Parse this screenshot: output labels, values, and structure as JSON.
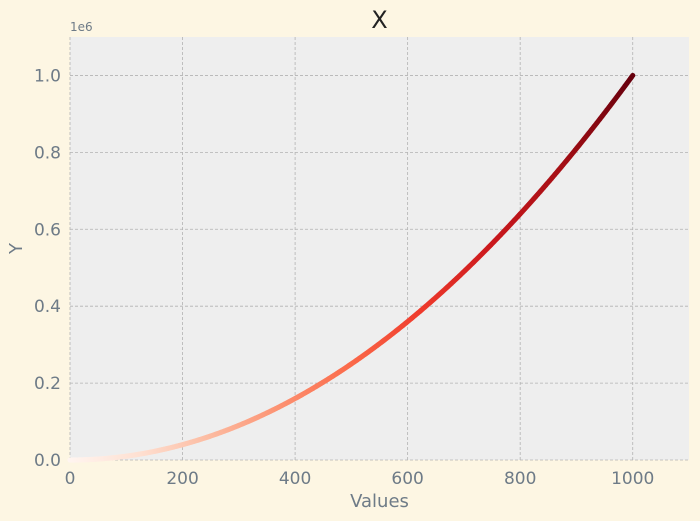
{
  "chart_data": {
    "type": "scatter",
    "title": "X",
    "xlabel": "Values",
    "ylabel": "Y",
    "y_offset_label": "1e6",
    "xlim": [
      0,
      1100
    ],
    "ylim": [
      0,
      1.1
    ],
    "y_scale_factor": 1000000,
    "xticks": [
      0,
      200,
      400,
      600,
      800,
      1000
    ],
    "xtick_labels": [
      "0",
      "200",
      "400",
      "600",
      "800",
      "1000"
    ],
    "yticks": [
      0,
      0.2,
      0.4,
      0.6,
      0.8,
      1.0
    ],
    "ytick_labels": [
      "0.0",
      "0.2",
      "0.4",
      "0.6",
      "0.8",
      "1.0"
    ],
    "grid": true,
    "series": [
      {
        "function": "y = x^2",
        "x": [
          0,
          50,
          100,
          150,
          200,
          250,
          300,
          350,
          400,
          450,
          500,
          550,
          600,
          650,
          700,
          750,
          800,
          850,
          900,
          950,
          1000
        ],
        "y": [
          0,
          2500,
          10000,
          22500,
          40000,
          62500,
          90000,
          122500,
          160000,
          202500,
          250000,
          302500,
          360000,
          422500,
          490000,
          562500,
          640000,
          722500,
          810000,
          902500,
          1000000
        ],
        "colormap": "Reds"
      }
    ],
    "colors": {
      "background": "#fdf6e3",
      "plot_background": "#eeeeee",
      "grid": "#b2b2b2",
      "text": "#6e7b87",
      "title": "#222222"
    }
  }
}
